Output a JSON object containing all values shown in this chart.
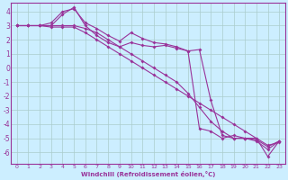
{
  "xlabel": "Windchill (Refroidissement éolien,°C)",
  "background_color": "#cceeff",
  "grid_color": "#aacccc",
  "line_color": "#993399",
  "spine_color": "#993399",
  "xlim": [
    -0.5,
    23.5
  ],
  "ylim": [
    -6.8,
    4.6
  ],
  "yticks": [
    -6,
    -5,
    -4,
    -3,
    -2,
    -1,
    0,
    1,
    2,
    3,
    4
  ],
  "xticks": [
    0,
    1,
    2,
    3,
    4,
    5,
    6,
    7,
    8,
    9,
    10,
    11,
    12,
    13,
    14,
    15,
    16,
    17,
    18,
    19,
    20,
    21,
    22,
    23
  ],
  "series": [
    [
      3.0,
      3.0,
      3.0,
      3.0,
      3.8,
      4.3,
      3.0,
      2.3,
      1.8,
      1.5,
      1.8,
      1.6,
      1.5,
      1.6,
      1.4,
      1.2,
      -4.3,
      -4.5,
      -5.0,
      -4.8,
      -5.0,
      -5.0,
      -6.3,
      -5.2
    ],
    [
      3.0,
      3.0,
      3.0,
      3.2,
      4.0,
      4.2,
      3.2,
      2.8,
      2.3,
      1.9,
      2.5,
      2.1,
      1.8,
      1.7,
      1.5,
      1.2,
      1.3,
      -2.3,
      -4.8,
      -5.0,
      -5.0,
      -5.1,
      -5.6,
      -5.2
    ],
    [
      3.0,
      3.0,
      3.0,
      2.9,
      2.9,
      2.9,
      2.5,
      2.0,
      1.5,
      1.0,
      0.5,
      0.0,
      -0.5,
      -1.0,
      -1.5,
      -2.0,
      -2.5,
      -3.0,
      -3.5,
      -4.0,
      -4.5,
      -5.0,
      -5.5,
      -5.3
    ],
    [
      3.0,
      3.0,
      3.0,
      3.0,
      3.0,
      3.0,
      2.8,
      2.5,
      2.0,
      1.5,
      1.0,
      0.5,
      0.0,
      -0.5,
      -1.0,
      -1.8,
      -2.8,
      -3.8,
      -4.5,
      -5.0,
      -5.0,
      -5.2,
      -5.8,
      -5.2
    ]
  ]
}
